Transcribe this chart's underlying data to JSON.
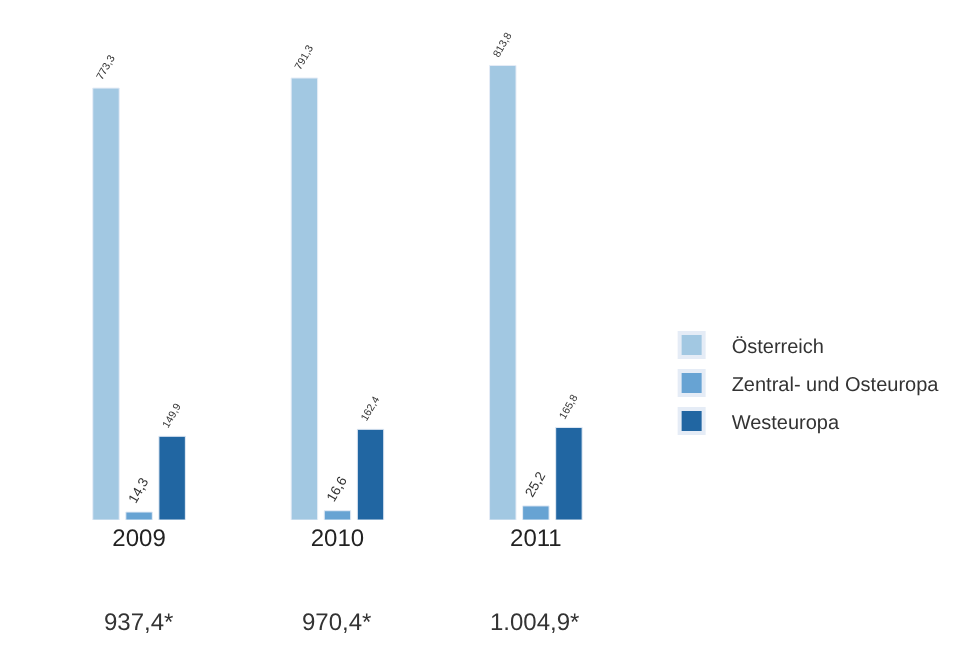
{
  "chart_data": {
    "type": "bar",
    "categories": [
      "2009",
      "2010",
      "2011"
    ],
    "series": [
      {
        "name": "Österreich",
        "color": "#a2c8e2",
        "values": [
          773.3,
          791.3,
          813.8
        ],
        "value_labels": [
          "773,3",
          "791,3",
          "813,8"
        ]
      },
      {
        "name": "Zentral- und Osteuropa",
        "color": "#67a3d3",
        "values": [
          14.3,
          16.6,
          25.2
        ],
        "value_labels": [
          "14,3",
          "16,6",
          "25,2"
        ]
      },
      {
        "name": "Westeuropa",
        "color": "#2166a2",
        "values": [
          149.9,
          162.4,
          165.8
        ],
        "value_labels": [
          "149,9",
          "162,4",
          "165,8"
        ]
      }
    ],
    "annotations": [
      "937,4*",
      "970,4*",
      "1.004,9*"
    ],
    "legend": "right"
  }
}
